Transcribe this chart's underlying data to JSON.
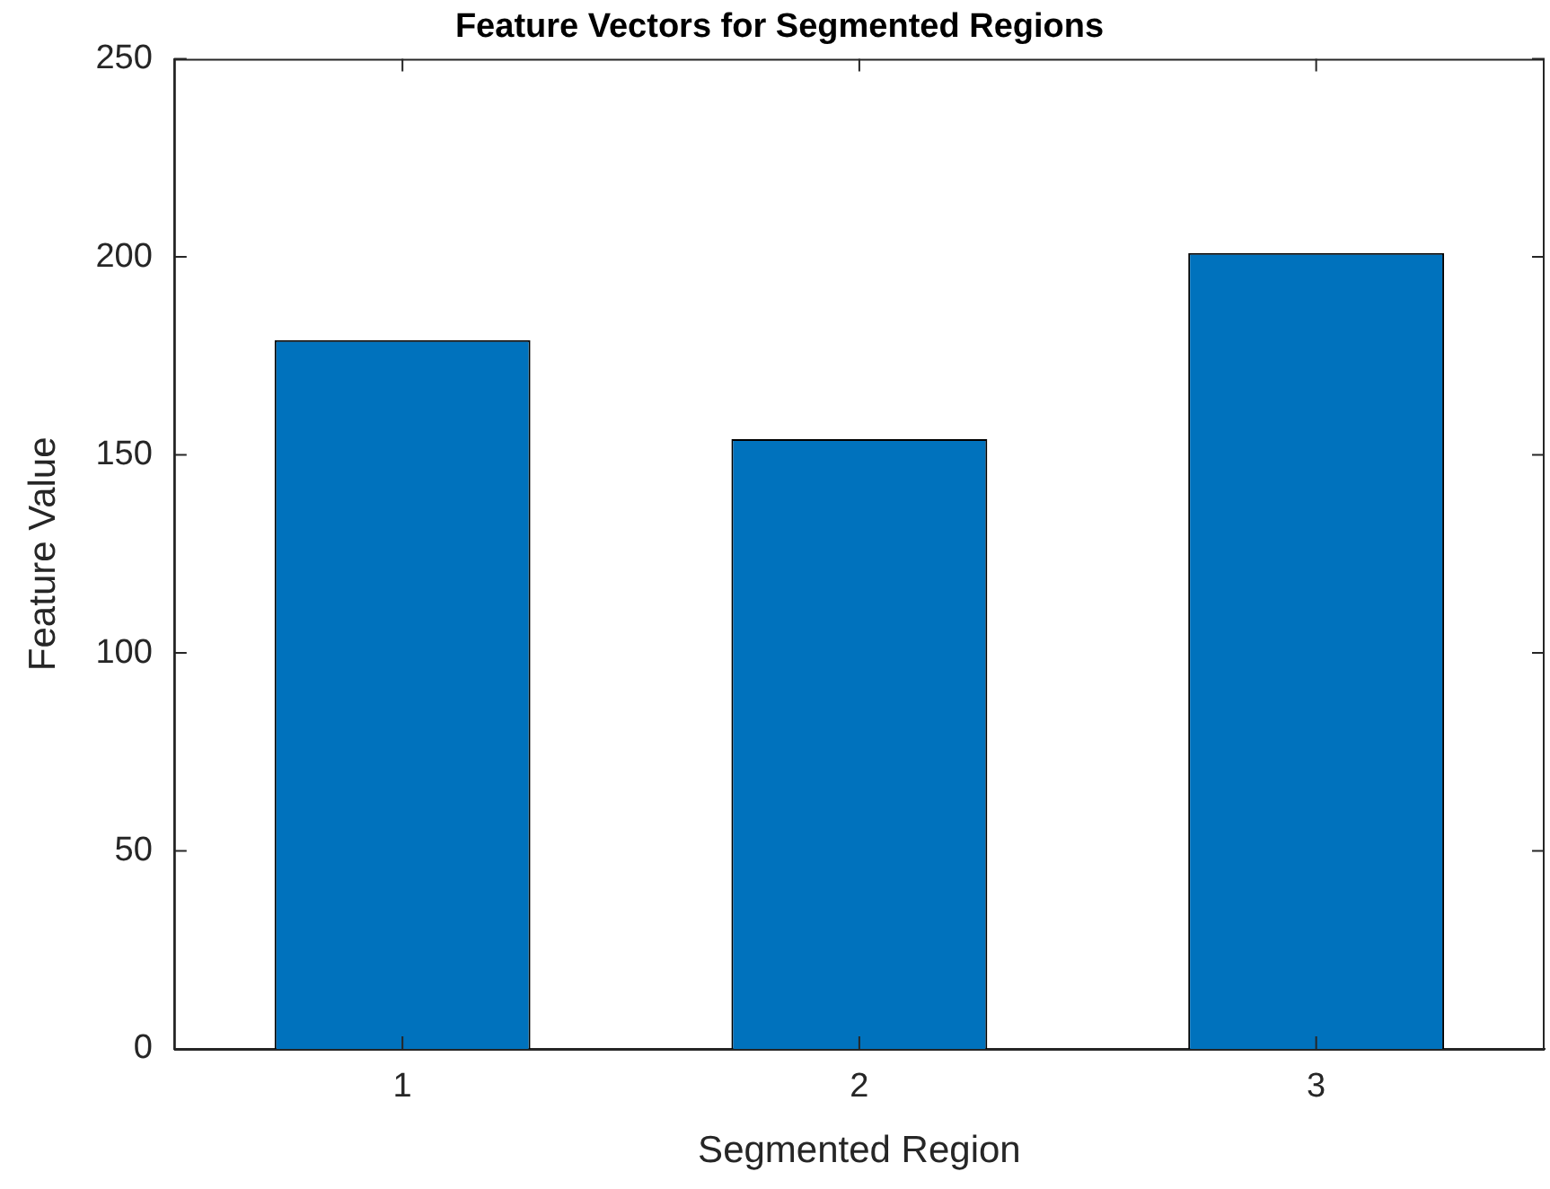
{
  "chart_data": {
    "type": "bar",
    "title": "Feature Vectors for Segmented Regions",
    "xlabel": "Segmented Region",
    "ylabel": "Feature Value",
    "categories": [
      "1",
      "2",
      "3"
    ],
    "values": [
      179,
      154,
      201
    ],
    "color": "#0072bd",
    "ylim": [
      0,
      250
    ],
    "yticks": [
      0,
      50,
      100,
      150,
      200,
      250
    ],
    "grid": false,
    "legend": false
  }
}
